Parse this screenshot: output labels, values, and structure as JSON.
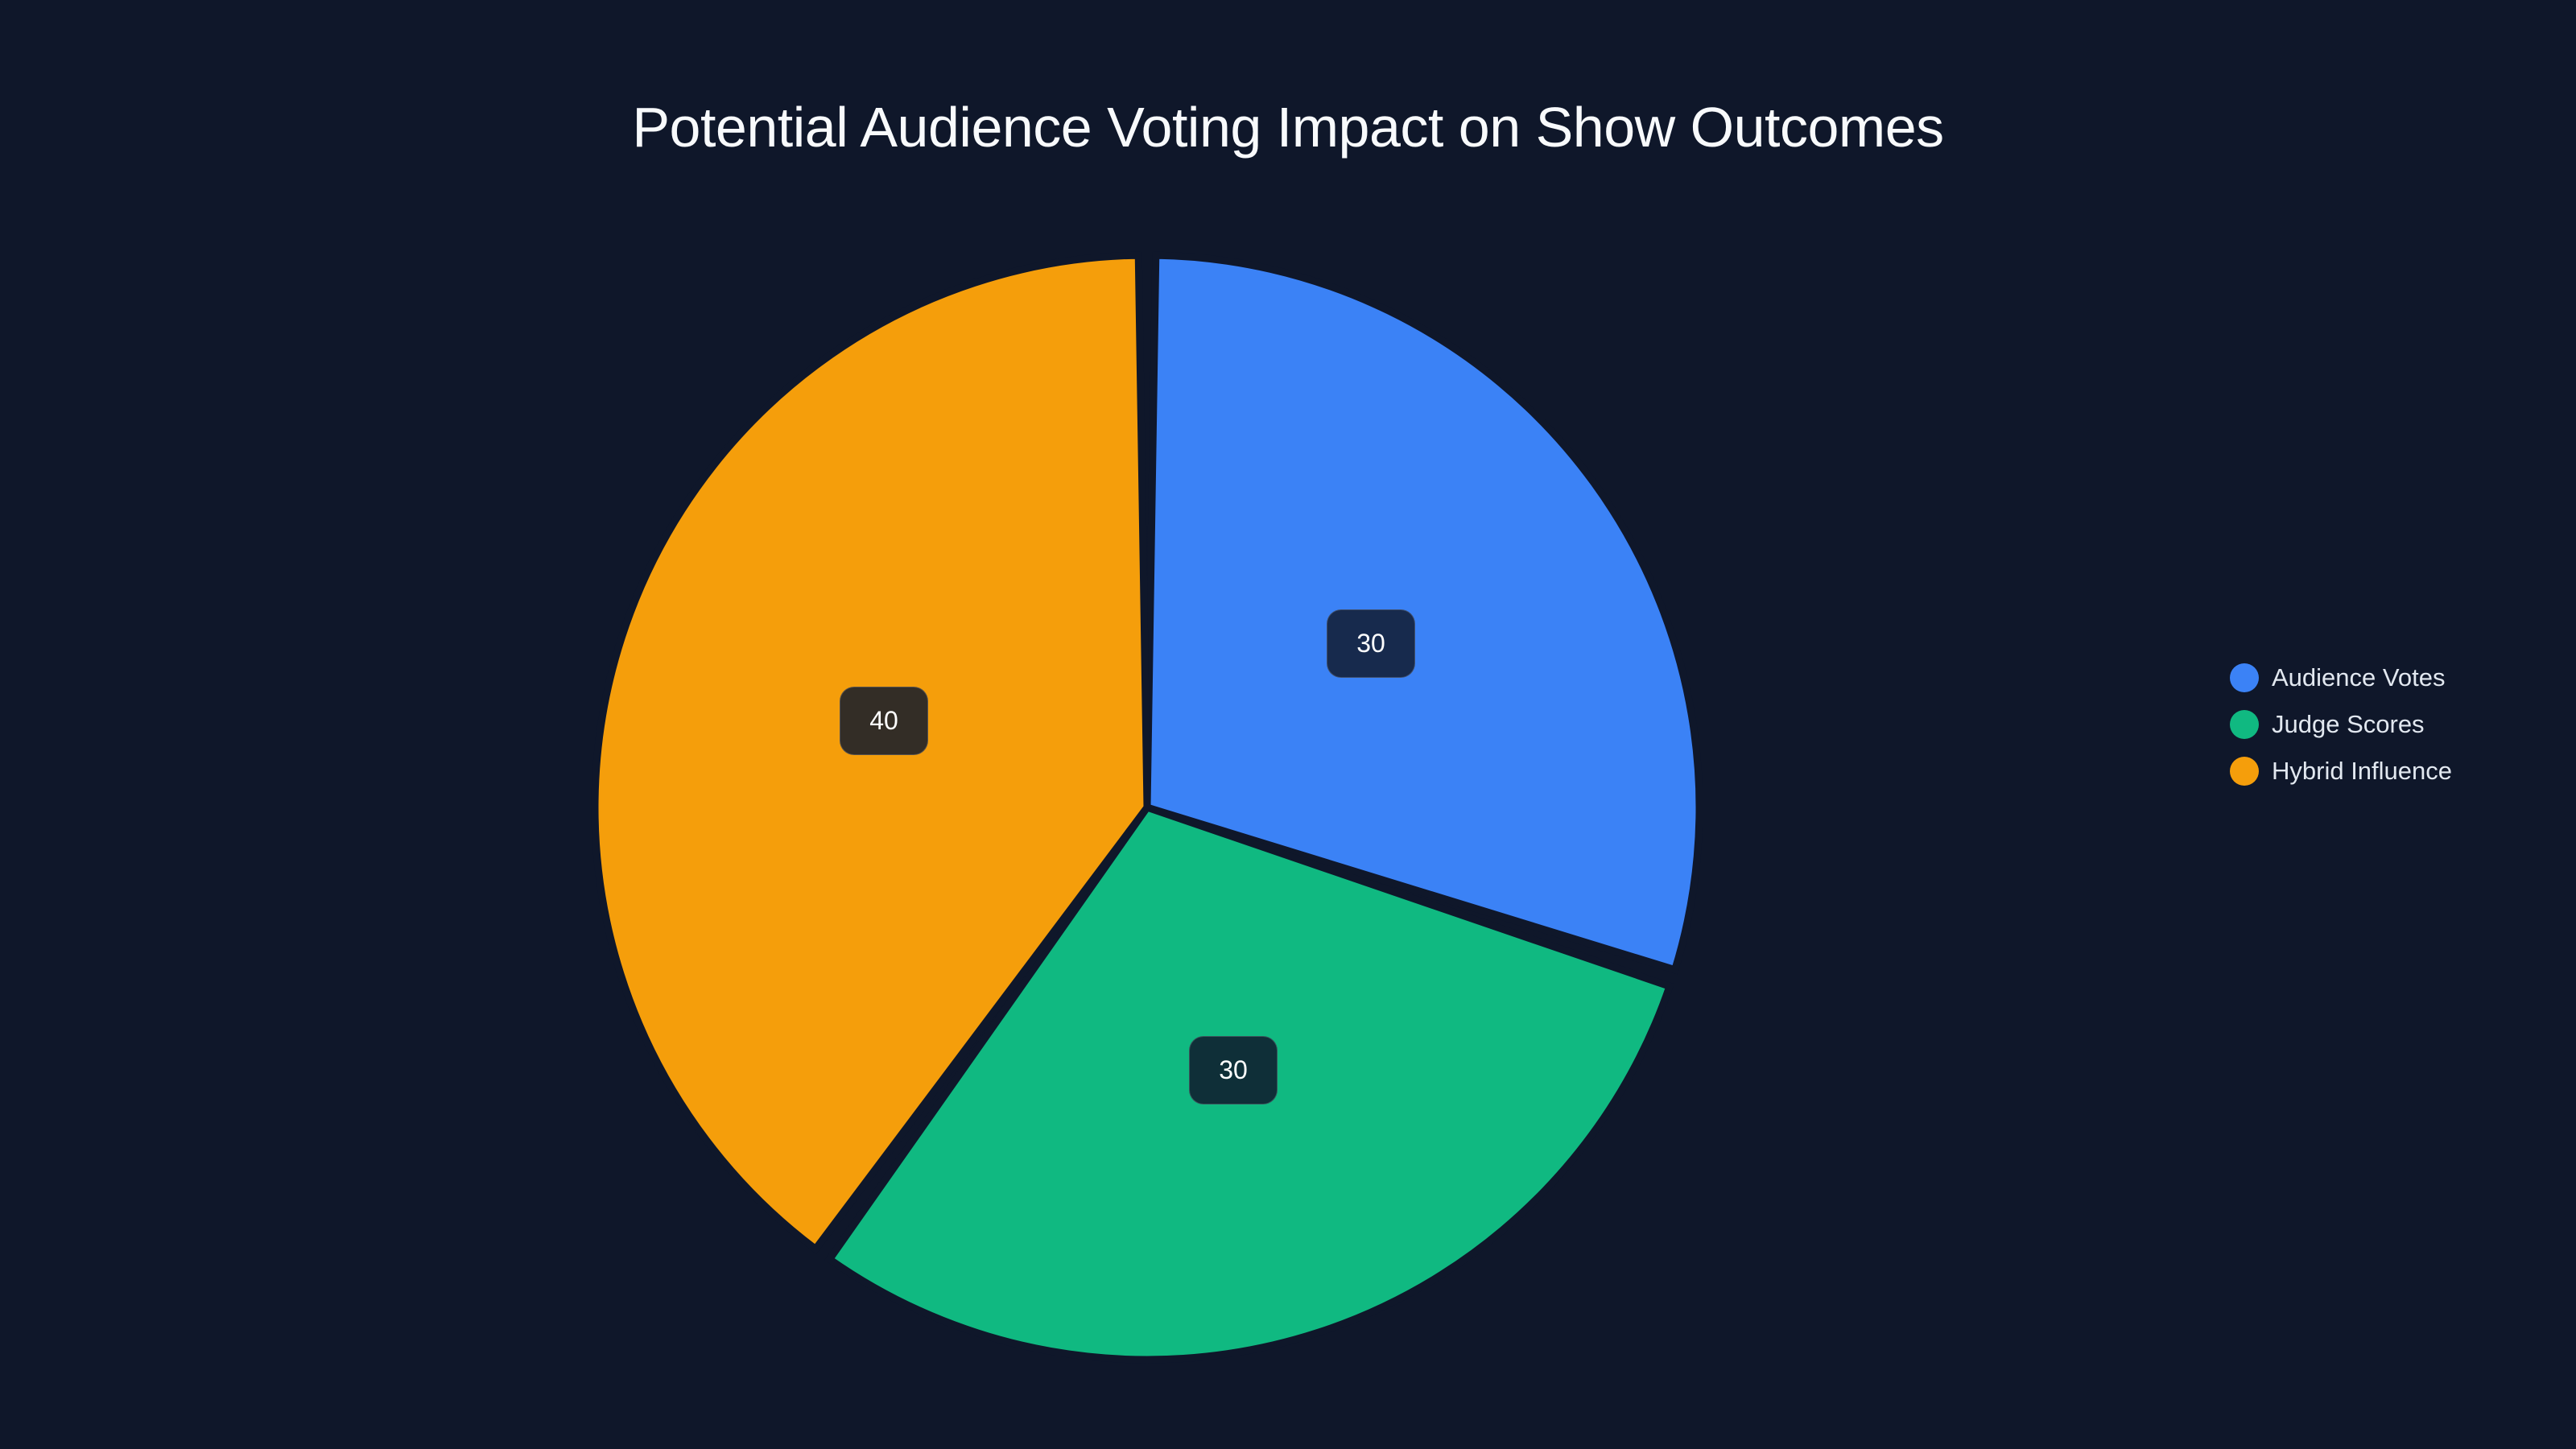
{
  "chart": {
    "title": "Potential Audience Voting Impact on Show Outcomes",
    "background": "#0f172a"
  },
  "legend": {
    "items": [
      {
        "label": "Audience Votes",
        "color": "#3b82f6"
      },
      {
        "label": "Judge Scores",
        "color": "#10b981"
      },
      {
        "label": "Hybrid Influence",
        "color": "#f59e0b"
      }
    ]
  },
  "labels": {
    "audience_votes": "30",
    "judge_scores": "30",
    "hybrid_influence": "40"
  },
  "chart_data": {
    "type": "pie",
    "title": "Potential Audience Voting Impact on Show Outcomes",
    "categories": [
      "Audience Votes",
      "Judge Scores",
      "Hybrid Influence"
    ],
    "values": [
      30,
      30,
      40
    ],
    "colors": [
      "#3b82f6",
      "#10b981",
      "#f59e0b"
    ],
    "data_labels": [
      "30",
      "30",
      "40"
    ],
    "legend_position": "right",
    "start_angle": "12 o'clock, clockwise"
  }
}
